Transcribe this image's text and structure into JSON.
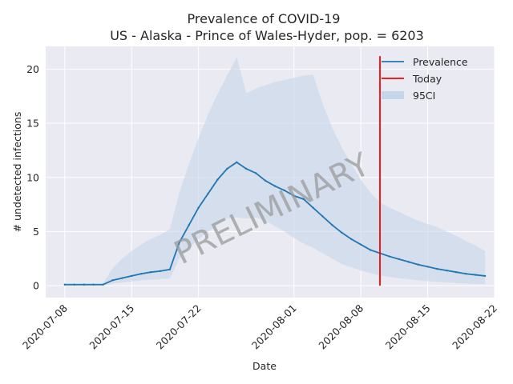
{
  "chart_data": {
    "type": "line",
    "title": "Prevalence of COVID-19",
    "subtitle": "US - Alaska - Prince of Wales-Hyder, pop. = 6203",
    "xlabel": "Date",
    "ylabel": "# undetected infections",
    "x_ticks": [
      "2020-07-08",
      "2020-07-15",
      "2020-07-22",
      "2020-08-01",
      "2020-08-08",
      "2020-08-15",
      "2020-08-22"
    ],
    "y_ticks": [
      "0",
      "5",
      "10",
      "15",
      "20"
    ],
    "xlim": [
      "2020-07-06",
      "2020-08-22"
    ],
    "ylim": [
      -1.1,
      22.1
    ],
    "grid": true,
    "legend_position": "top-right",
    "today": "2020-08-10",
    "watermark": "PRELIMINARY",
    "colors": {
      "prevalence": "#1f77b4",
      "today": "#ff0000",
      "ci": "#c6d6ea",
      "background": "#e9eaf2"
    },
    "series": [
      {
        "name": "Prevalence",
        "dates": [
          "2020-07-08",
          "2020-07-09",
          "2020-07-10",
          "2020-07-11",
          "2020-07-12",
          "2020-07-13",
          "2020-07-14",
          "2020-07-15",
          "2020-07-16",
          "2020-07-17",
          "2020-07-18",
          "2020-07-19",
          "2020-07-20",
          "2020-07-21",
          "2020-07-22",
          "2020-07-23",
          "2020-07-24",
          "2020-07-25",
          "2020-07-26",
          "2020-07-27",
          "2020-07-28",
          "2020-07-29",
          "2020-07-30",
          "2020-07-31",
          "2020-08-01",
          "2020-08-02",
          "2020-08-03",
          "2020-08-04",
          "2020-08-05",
          "2020-08-06",
          "2020-08-07",
          "2020-08-08",
          "2020-08-09",
          "2020-08-10",
          "2020-08-11",
          "2020-08-12",
          "2020-08-13",
          "2020-08-14",
          "2020-08-15",
          "2020-08-16",
          "2020-08-17",
          "2020-08-18",
          "2020-08-19",
          "2020-08-20",
          "2020-08-21"
        ],
        "values": [
          0.1,
          0.1,
          0.1,
          0.1,
          0.1,
          0.5,
          0.7,
          0.9,
          1.1,
          1.25,
          1.35,
          1.5,
          4.0,
          5.6,
          7.2,
          8.5,
          9.8,
          10.8,
          11.4,
          10.8,
          10.4,
          9.7,
          9.2,
          8.8,
          8.3,
          8.0,
          7.2,
          6.4,
          5.6,
          4.9,
          4.3,
          3.8,
          3.3,
          3.0,
          2.7,
          2.45,
          2.2,
          1.95,
          1.75,
          1.55,
          1.4,
          1.25,
          1.1,
          1.0,
          0.9
        ]
      },
      {
        "name": "95CI",
        "dates": [
          "2020-07-08",
          "2020-07-09",
          "2020-07-10",
          "2020-07-11",
          "2020-07-12",
          "2020-07-13",
          "2020-07-14",
          "2020-07-15",
          "2020-07-16",
          "2020-07-17",
          "2020-07-18",
          "2020-07-19",
          "2020-07-20",
          "2020-07-21",
          "2020-07-22",
          "2020-07-23",
          "2020-07-24",
          "2020-07-25",
          "2020-07-26",
          "2020-07-27",
          "2020-07-28",
          "2020-07-29",
          "2020-07-30",
          "2020-07-31",
          "2020-08-01",
          "2020-08-02",
          "2020-08-03",
          "2020-08-04",
          "2020-08-05",
          "2020-08-06",
          "2020-08-07",
          "2020-08-08",
          "2020-08-09",
          "2020-08-10",
          "2020-08-11",
          "2020-08-12",
          "2020-08-13",
          "2020-08-14",
          "2020-08-15",
          "2020-08-16",
          "2020-08-17",
          "2020-08-18",
          "2020-08-19",
          "2020-08-20",
          "2020-08-21"
        ],
        "lower": [
          0.0,
          0.0,
          0.0,
          0.0,
          0.0,
          0.2,
          0.3,
          0.4,
          0.5,
          0.55,
          0.6,
          0.65,
          2.5,
          3.5,
          4.3,
          5.0,
          5.6,
          6.2,
          6.3,
          6.2,
          6.3,
          6.0,
          5.5,
          5.0,
          4.4,
          3.9,
          3.5,
          3.0,
          2.5,
          2.0,
          1.7,
          1.4,
          1.15,
          0.95,
          0.8,
          0.7,
          0.6,
          0.5,
          0.42,
          0.35,
          0.3,
          0.25,
          0.2,
          0.17,
          0.15
        ],
        "upper": [
          0.2,
          0.2,
          0.2,
          0.2,
          0.2,
          1.6,
          2.5,
          3.2,
          3.8,
          4.3,
          4.7,
          5.2,
          8.6,
          11.2,
          13.6,
          15.8,
          17.7,
          19.4,
          21.1,
          17.8,
          18.2,
          18.5,
          18.8,
          19.0,
          19.2,
          19.4,
          19.5,
          16.8,
          14.6,
          12.8,
          11.2,
          9.8,
          8.6,
          7.7,
          7.2,
          6.8,
          6.4,
          6.0,
          5.7,
          5.4,
          5.0,
          4.6,
          4.1,
          3.7,
          3.2
        ]
      }
    ],
    "legend": [
      {
        "label": "Prevalence",
        "kind": "line",
        "color": "#1f77b4"
      },
      {
        "label": "Today",
        "kind": "line",
        "color": "#ff0000"
      },
      {
        "label": "95CI",
        "kind": "patch",
        "color": "#c6d6ea"
      }
    ]
  }
}
